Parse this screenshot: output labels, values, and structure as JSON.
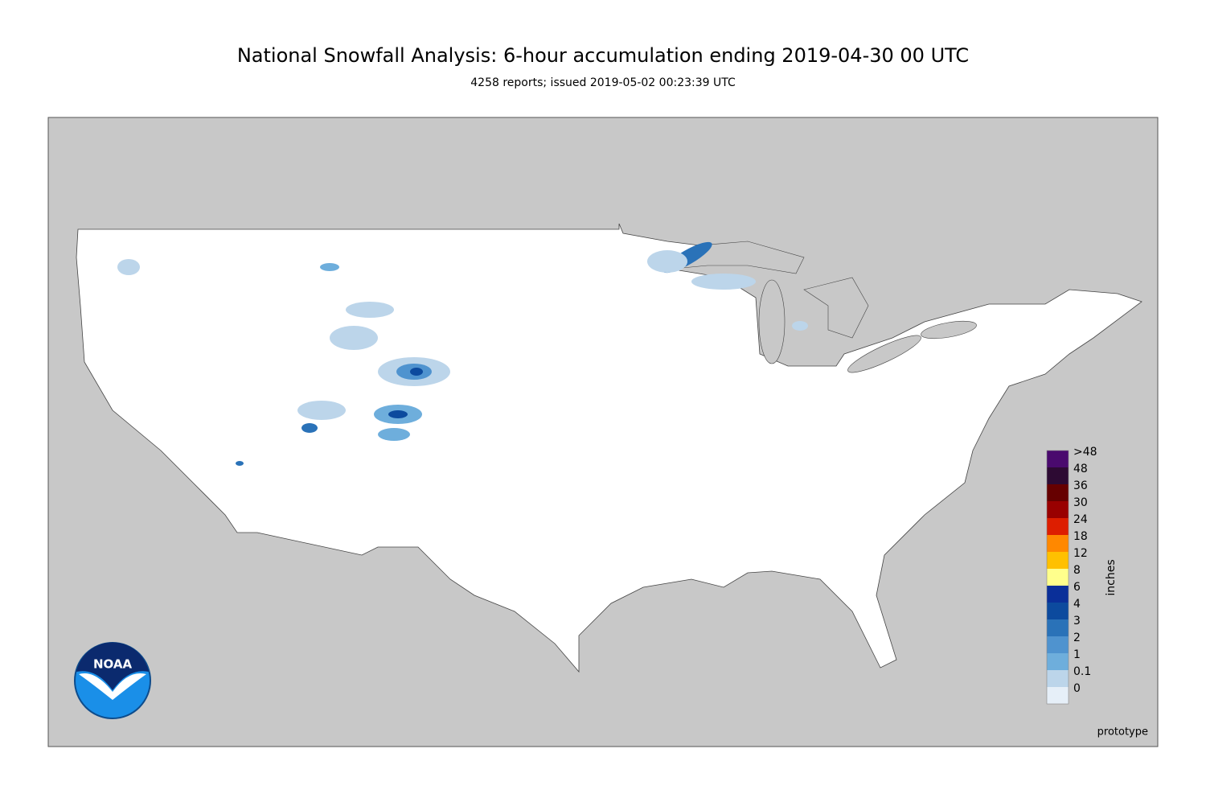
{
  "header": {
    "title": "National Snowfall Analysis: 6-hour accumulation ending 2019-04-30 00 UTC",
    "subtitle": "4258 reports; issued 2019-05-02 00:23:39 UTC"
  },
  "legend": {
    "unit": "inches",
    "items": [
      {
        "label": ">48",
        "color": "#4a0a6e"
      },
      {
        "label": "48",
        "color": "#2d0a33"
      },
      {
        "label": "36",
        "color": "#660000"
      },
      {
        "label": "30",
        "color": "#990000"
      },
      {
        "label": "24",
        "color": "#dd1e00"
      },
      {
        "label": "18",
        "color": "#ff8800"
      },
      {
        "label": "12",
        "color": "#ffc000"
      },
      {
        "label": "8",
        "color": "#ffff8c"
      },
      {
        "label": "6",
        "color": "#0a2f99"
      },
      {
        "label": "4",
        "color": "#0c4a9e"
      },
      {
        "label": "3",
        "color": "#2a72b8"
      },
      {
        "label": "2",
        "color": "#4f93cf"
      },
      {
        "label": "1",
        "color": "#6eaedc"
      },
      {
        "label": "0.1",
        "color": "#bcd5ea"
      },
      {
        "label": "0",
        "color": "#e6eff8"
      }
    ]
  },
  "logo": "NOAA",
  "footer": "prototype"
}
